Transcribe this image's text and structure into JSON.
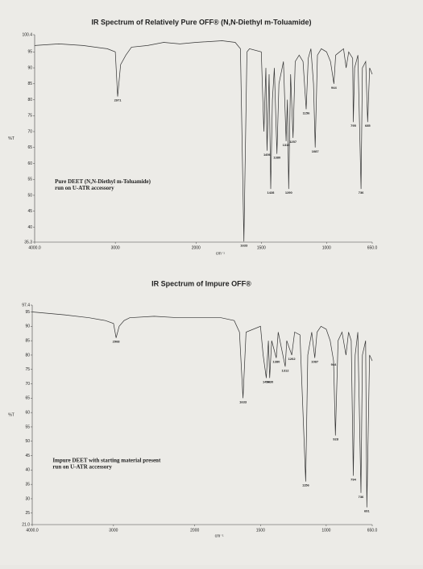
{
  "chart_data": [
    {
      "type": "line",
      "title": "IR Spectrum of Relatively Pure OFF® (N,N-Diethyl m-Toluamide)",
      "ylabel": "%T",
      "xlabel": "cm⁻¹",
      "annotation": [
        "Pure DEET (N,N-Diethyl m-Toluamide)",
        "run on U-ATR accessory"
      ],
      "color": "#333333",
      "xlim": [
        4000,
        650
      ],
      "ylim": [
        35.3,
        100.4
      ],
      "xticks": [
        {
          "value": 4000,
          "label": "4000.0"
        },
        3000,
        2000,
        1500,
        1000,
        {
          "value": 650,
          "label": "650.0"
        }
      ],
      "yticks": [
        35.3,
        40,
        45,
        50,
        55,
        60,
        65,
        70,
        75,
        80,
        85,
        90,
        95,
        100.4
      ],
      "x": [
        4000,
        3700,
        3400,
        3100,
        3000,
        2971,
        2935,
        2870,
        2800,
        2600,
        2400,
        2200,
        2000,
        1800,
        1700,
        1660,
        1633,
        1610,
        1590,
        1500,
        1480,
        1465,
        1456,
        1440,
        1428,
        1415,
        1400,
        1380,
        1365,
        1330,
        1310,
        1300,
        1290,
        1275,
        1257,
        1240,
        1210,
        1180,
        1156,
        1140,
        1120,
        1100,
        1087,
        1070,
        1040,
        1000,
        970,
        944,
        930,
        900,
        870,
        850,
        830,
        800,
        795,
        785,
        760,
        736,
        725,
        700,
        685,
        670,
        650
      ],
      "values": [
        97,
        97.5,
        97,
        96,
        95,
        81,
        91,
        94,
        96.5,
        97,
        98,
        97.5,
        98,
        98.5,
        98,
        96,
        35.5,
        95,
        96,
        95,
        70,
        90,
        64,
        88,
        52,
        80,
        90,
        63,
        85,
        92,
        67,
        80,
        52,
        88,
        68,
        92,
        94,
        92,
        77,
        93,
        96,
        85,
        65,
        94,
        96,
        95,
        92,
        85,
        94,
        95,
        96,
        90,
        95,
        93,
        73,
        90,
        94,
        52,
        90,
        92,
        73,
        90,
        88
      ],
      "peaks": [
        {
          "x": 2971,
          "y": 81
        },
        {
          "x": 1633,
          "y": 35.5
        },
        {
          "x": 1456,
          "y": 64
        },
        {
          "x": 1428,
          "y": 52
        },
        {
          "x": 1380,
          "y": 63
        },
        {
          "x": 1310,
          "y": 67
        },
        {
          "x": 1290,
          "y": 52
        },
        {
          "x": 1257,
          "y": 68
        },
        {
          "x": 1156,
          "y": 77
        },
        {
          "x": 1087,
          "y": 65
        },
        {
          "x": 944,
          "y": 85
        },
        {
          "x": 795,
          "y": 73
        },
        {
          "x": 736,
          "y": 52
        },
        {
          "x": 685,
          "y": 73
        }
      ]
    },
    {
      "type": "line",
      "title": "IR Spectrum of Impure OFF®",
      "ylabel": "%T",
      "xlabel": "cm⁻¹",
      "annotation": [
        "Impure DEET with starting material present",
        "run on U-ATR accessory"
      ],
      "color": "#333333",
      "xlim": [
        4000,
        650
      ],
      "ylim": [
        21.0,
        97.4
      ],
      "xticks": [
        {
          "value": 4000,
          "label": "4000.0"
        },
        3000,
        2000,
        1500,
        1000,
        {
          "value": 650,
          "label": "650.0"
        }
      ],
      "yticks": [
        {
          "value": 21.0,
          "label": "21.0"
        },
        25,
        30,
        35,
        40,
        45,
        50,
        55,
        60,
        65,
        70,
        75,
        80,
        85,
        90,
        95,
        97.4
      ],
      "x": [
        4000,
        3600,
        3300,
        3100,
        3000,
        2968,
        2930,
        2870,
        2800,
        2500,
        2200,
        2000,
        1800,
        1700,
        1660,
        1633,
        1610,
        1500,
        1480,
        1456,
        1440,
        1430,
        1415,
        1380,
        1365,
        1312,
        1300,
        1262,
        1240,
        1200,
        1156,
        1140,
        1110,
        1087,
        1070,
        1040,
        1000,
        970,
        944,
        930,
        910,
        880,
        850,
        830,
        810,
        794,
        780,
        760,
        736,
        725,
        700,
        691,
        670,
        650
      ],
      "values": [
        95,
        94,
        93,
        92,
        91,
        86,
        90,
        92,
        93,
        93.5,
        93,
        93,
        93,
        92,
        88,
        65,
        88,
        90,
        80,
        72,
        85,
        72,
        85,
        79,
        88,
        76,
        85,
        80,
        88,
        87,
        36,
        80,
        88,
        79,
        88,
        90,
        89,
        85,
        78,
        52,
        85,
        88,
        80,
        88,
        85,
        38,
        80,
        88,
        32,
        80,
        85,
        27,
        80,
        78
      ],
      "peaks": [
        {
          "x": 2968,
          "y": 86
        },
        {
          "x": 1633,
          "y": 65
        },
        {
          "x": 1456,
          "y": 72
        },
        {
          "x": 1430,
          "y": 72
        },
        {
          "x": 1380,
          "y": 79
        },
        {
          "x": 1312,
          "y": 76
        },
        {
          "x": 1262,
          "y": 80
        },
        {
          "x": 1156,
          "y": 36
        },
        {
          "x": 1087,
          "y": 79
        },
        {
          "x": 944,
          "y": 78
        },
        {
          "x": 928,
          "y": 52
        },
        {
          "x": 794,
          "y": 38
        },
        {
          "x": 736,
          "y": 32
        },
        {
          "x": 691,
          "y": 27
        }
      ]
    }
  ]
}
